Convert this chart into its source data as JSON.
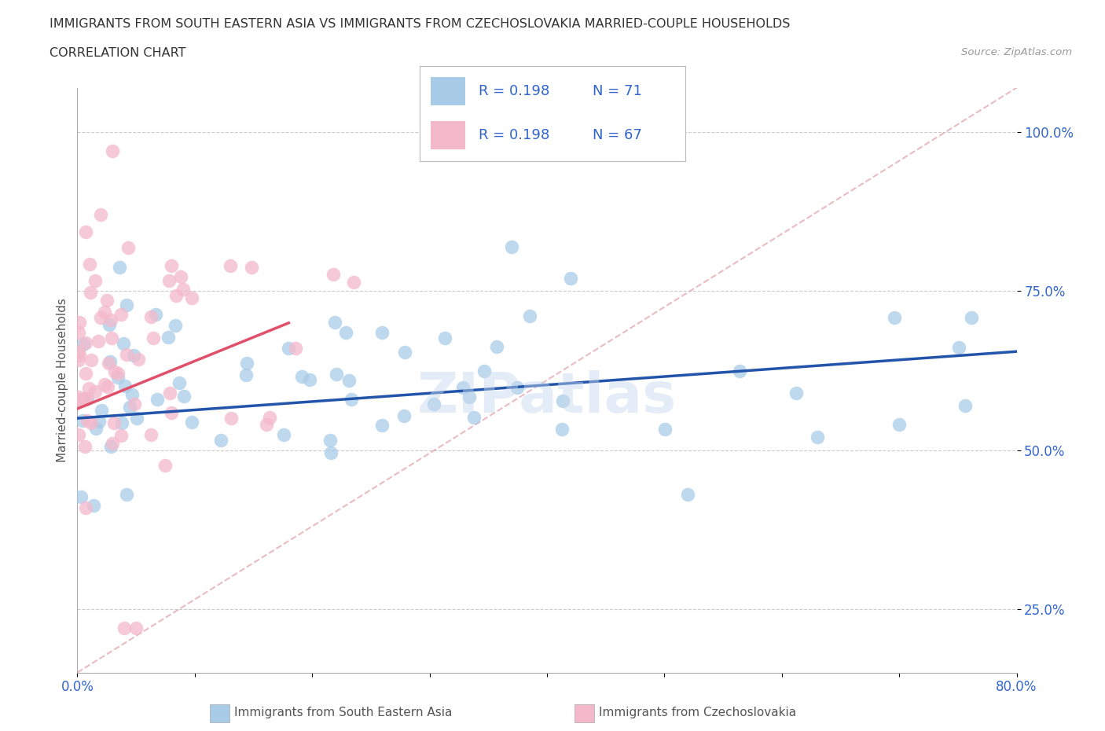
{
  "title_line1": "IMMIGRANTS FROM SOUTH EASTERN ASIA VS IMMIGRANTS FROM CZECHOSLOVAKIA MARRIED-COUPLE HOUSEHOLDS",
  "title_line2": "CORRELATION CHART",
  "source": "Source: ZipAtlas.com",
  "ylabel": "Married-couple Households",
  "xlim": [
    0.0,
    80.0
  ],
  "ylim": [
    15.0,
    107.0
  ],
  "xticks": [
    0.0,
    10.0,
    20.0,
    30.0,
    40.0,
    50.0,
    60.0,
    70.0,
    80.0
  ],
  "yticks": [
    25.0,
    50.0,
    75.0,
    100.0
  ],
  "ytick_labels": [
    "25.0%",
    "50.0%",
    "75.0%",
    "100.0%"
  ],
  "xtick_labels": [
    "0.0%",
    "",
    "",
    "",
    "",
    "",
    "",
    "",
    "80.0%"
  ],
  "blue_color": "#a8cce8",
  "pink_color": "#f4b8cb",
  "blue_line_color": "#2255aa",
  "pink_line_color": "#e0506a",
  "diag_color": "#e0a0a8",
  "watermark": "ZIPatlas",
  "legend_R_blue": "R = 0.198",
  "legend_N_blue": "N = 71",
  "legend_R_pink": "R = 0.198",
  "legend_N_pink": "N = 67",
  "blue_trend_x0": 0.0,
  "blue_trend_y0": 55.0,
  "blue_trend_x1": 80.0,
  "blue_trend_y1": 65.5,
  "pink_trend_x0": 0.0,
  "pink_trend_y0": 56.5,
  "pink_trend_x1": 18.0,
  "pink_trend_y1": 70.0,
  "diag_x0": 0.0,
  "diag_y0": 15.0,
  "diag_x1": 80.0,
  "diag_y1": 107.0,
  "legend_label_blue": "Immigrants from South Eastern Asia",
  "legend_label_pink": "Immigrants from Czechoslovakia"
}
